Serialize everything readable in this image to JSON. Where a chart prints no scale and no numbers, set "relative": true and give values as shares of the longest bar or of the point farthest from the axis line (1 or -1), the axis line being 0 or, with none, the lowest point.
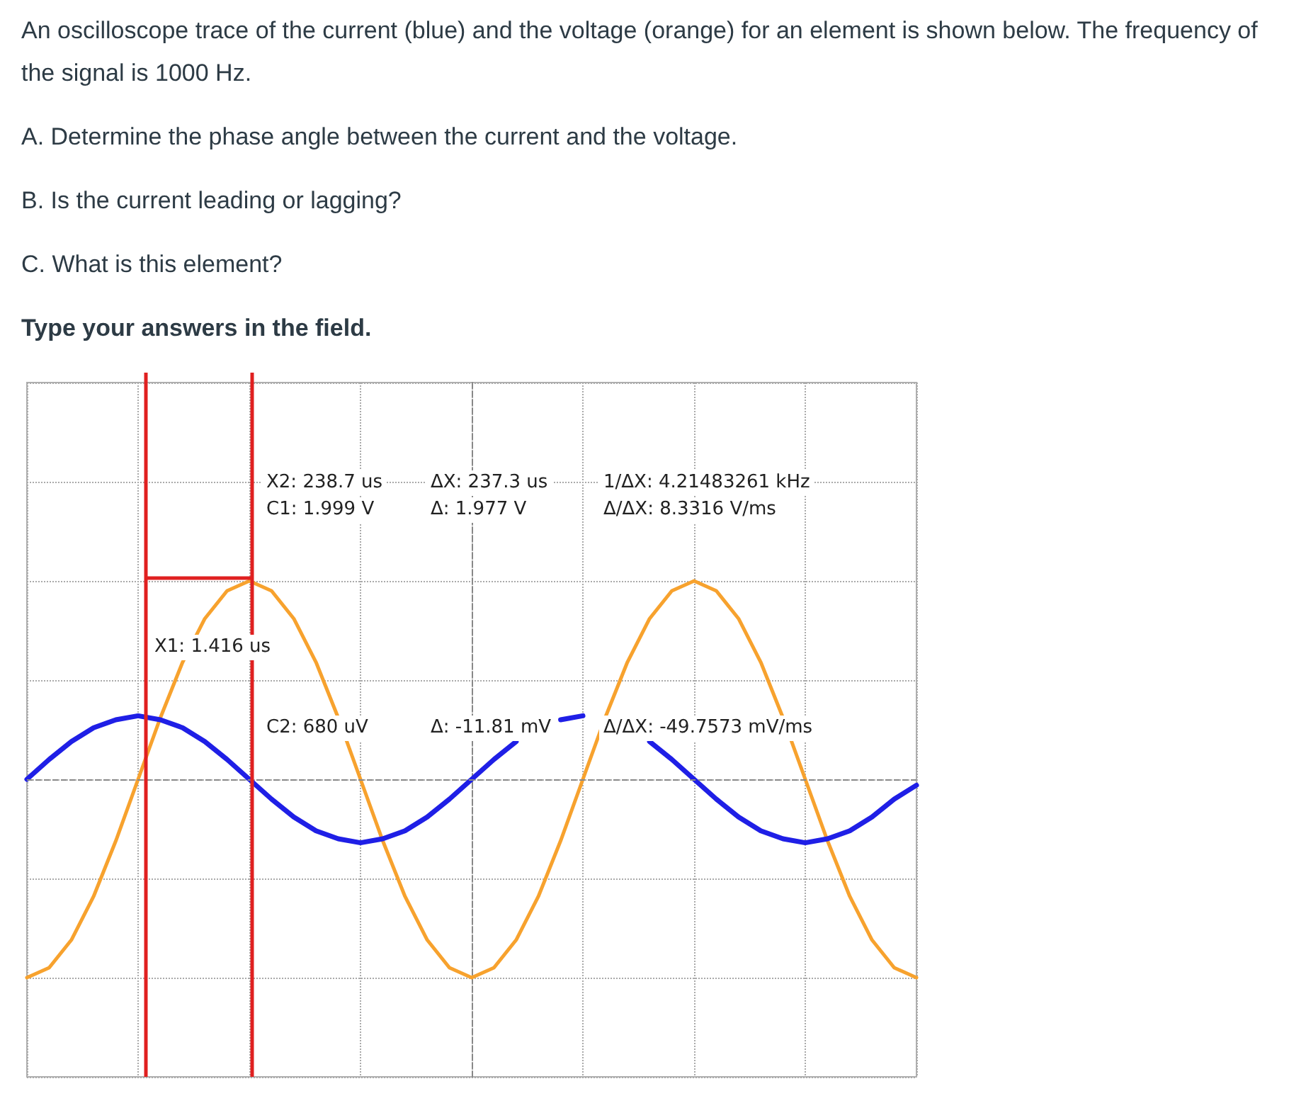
{
  "chart_data": {
    "type": "line",
    "relative": true,
    "title": "An oscilloscope trace of the current (blue) and the voltage (orange) for an element is shown below. The frequency of the signal is 1000 Hz.",
    "annotations": [
      "A. Determine the phase angle between the current and the voltage.",
      "B. Is the current leading or lagging?",
      "C. What is this element?",
      "Type your answers in the field.",
      "X2: 238.7 us",
      "C1: 1.999 V",
      "ΔX: 237.3 us",
      "Δ: 1.977 V",
      "1/ΔX: 4.21483261 kHz",
      "Δ/ΔX: 8.3316 V/ms",
      "X1: 1.416 us",
      "C2: 680 uV",
      "Δ: -11.81 mV",
      "Δ/ΔX: -49.7573 mV/ms"
    ],
    "categories": [
      null,
      null,
      null,
      null,
      null,
      null,
      null,
      null,
      null,
      null,
      null,
      null,
      null,
      null,
      null,
      null,
      null,
      null,
      null,
      null,
      null,
      null,
      null,
      null,
      null,
      null,
      null,
      null,
      null,
      null,
      null,
      null,
      null,
      null,
      null,
      null,
      null,
      null,
      null,
      null,
      null
    ],
    "grid": true,
    "marker": "none",
    "line_style": "solid",
    "series": [
      {
        "color": "#f7a22e",
        "values": [
          -1,
          -0.95,
          -0.81,
          -0.59,
          -0.31,
          0,
          0.31,
          0.59,
          0.81,
          0.95,
          1,
          0.95,
          0.81,
          0.59,
          0.31,
          0,
          -0.31,
          -0.59,
          -0.81,
          -0.95,
          -1,
          -0.95,
          -0.81,
          -0.59,
          -0.31,
          0,
          0.31,
          0.59,
          0.81,
          0.95,
          1,
          0.95,
          0.81,
          0.59,
          0.31,
          0,
          -0.31,
          -0.59,
          -0.81,
          -0.95,
          -1
        ]
      },
      {
        "color": "#1f1fe6",
        "values": [
          0,
          0.1,
          0.19,
          0.26,
          0.3,
          0.32,
          0.3,
          0.26,
          0.19,
          0.1,
          0,
          -0.1,
          -0.19,
          -0.26,
          -0.3,
          -0.32,
          -0.3,
          -0.26,
          -0.19,
          -0.1,
          0,
          0.1,
          0.19,
          null,
          0.3,
          0.32,
          null,
          null,
          0.19,
          0.1,
          0,
          -0.1,
          -0.19,
          -0.26,
          -0.3,
          -0.32,
          -0.3,
          -0.26,
          -0.19,
          -0.1,
          -0.03
        ]
      }
    ],
    "ref_lines": [
      {
        "axis": "y",
        "value": 0,
        "color": "#888888",
        "line_style": "dashed"
      }
    ]
  }
}
